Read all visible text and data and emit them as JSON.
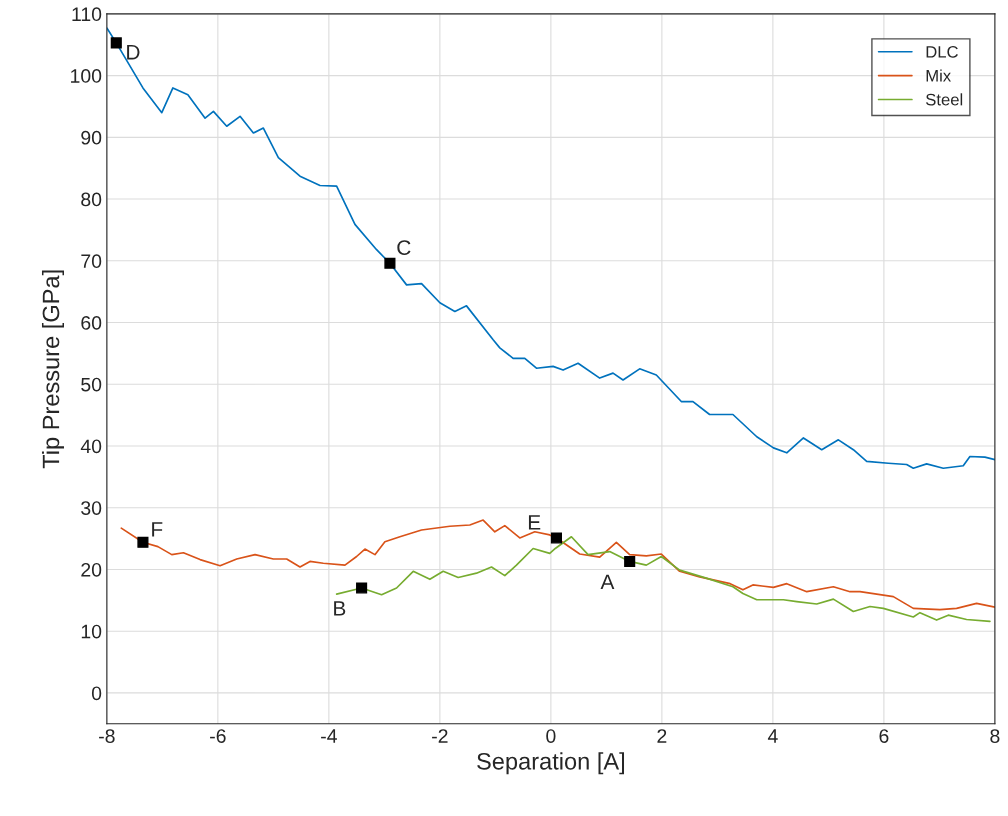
{
  "chart_data": {
    "type": "line",
    "xlabel": "Separation [A]",
    "ylabel": "Tip Pressure [GPa]",
    "xlim": [
      -8,
      8
    ],
    "ylim": [
      -5,
      110
    ],
    "xticks": [
      -8,
      -6,
      -4,
      -2,
      0,
      2,
      4,
      6,
      8
    ],
    "yticks": [
      0,
      10,
      20,
      30,
      40,
      50,
      60,
      70,
      80,
      90,
      100,
      110
    ],
    "grid": true,
    "legend": "top right",
    "line_style": "solid",
    "marker": "none",
    "series": [
      {
        "name": "DLC",
        "color": "#0072bd",
        "x": [
          -8,
          -7.83,
          -7.35,
          -7.01,
          -6.81,
          -6.54,
          -6.23,
          -6.08,
          -5.84,
          -5.6,
          -5.36,
          -5.18,
          -4.91,
          -4.52,
          -4.16,
          -3.86,
          -3.53,
          -3.14,
          -2.9,
          -2.6,
          -2.33,
          -2.0,
          -1.73,
          -1.52,
          -1.04,
          -0.92,
          -0.68,
          -0.47,
          -0.26,
          0.04,
          0.22,
          0.49,
          0.88,
          1.12,
          1.3,
          1.6,
          1.9,
          2.35,
          2.56,
          2.86,
          3.28,
          3.71,
          4.01,
          4.25,
          4.55,
          4.88,
          5.18,
          5.45,
          5.69,
          6.08,
          6.41,
          6.53,
          6.77,
          7.07,
          7.43,
          7.55,
          7.82,
          8
        ],
        "values": [
          107.7,
          105.3,
          98.0,
          94.0,
          98.0,
          96.9,
          93.1,
          94.2,
          91.8,
          93.4,
          90.7,
          91.5,
          86.7,
          83.7,
          82.2,
          82.1,
          75.9,
          71.8,
          69.6,
          66.1,
          66.3,
          63.2,
          61.8,
          62.7,
          57.2,
          55.9,
          54.2,
          54.2,
          52.6,
          52.9,
          52.3,
          53.4,
          51.0,
          51.8,
          50.7,
          52.5,
          51.5,
          47.2,
          47.2,
          45.1,
          45.1,
          41.5,
          39.7,
          38.9,
          41.3,
          39.4,
          41.0,
          39.4,
          37.5,
          37.2,
          37.0,
          36.4,
          37.1,
          36.4,
          36.8,
          38.3,
          38.2,
          37.8
        ]
      },
      {
        "name": "Mix",
        "color": "#d95319",
        "x": [
          -7.74,
          -7.35,
          -7.08,
          -6.83,
          -6.62,
          -6.32,
          -5.96,
          -5.66,
          -5.33,
          -5.0,
          -4.76,
          -4.52,
          -4.34,
          -4.1,
          -3.71,
          -3.5,
          -3.35,
          -3.17,
          -2.99,
          -2.72,
          -2.33,
          -1.82,
          -1.46,
          -1.22,
          -1.01,
          -0.83,
          -0.56,
          -0.29,
          -0.02,
          0.1,
          0.52,
          0.88,
          1.18,
          1.42,
          1.72,
          1.99,
          2.32,
          2.68,
          3.23,
          3.46,
          3.64,
          4.01,
          4.25,
          4.61,
          5.09,
          5.39,
          5.57,
          6.17,
          6.53,
          7.01,
          7.31,
          7.67,
          8
        ],
        "values": [
          26.7,
          24.4,
          23.7,
          22.4,
          22.7,
          21.6,
          20.6,
          21.7,
          22.4,
          21.7,
          21.7,
          20.4,
          21.3,
          21.0,
          20.7,
          22.1,
          23.3,
          22.4,
          24.5,
          25.3,
          26.4,
          27.0,
          27.2,
          28.0,
          26.1,
          27.1,
          25.1,
          26.1,
          25.6,
          25.1,
          22.5,
          22.0,
          24.4,
          22.4,
          22.2,
          22.5,
          19.7,
          18.8,
          17.7,
          16.7,
          17.5,
          17.1,
          17.7,
          16.4,
          17.2,
          16.4,
          16.4,
          15.6,
          13.7,
          13.5,
          13.7,
          14.5,
          13.9
        ]
      },
      {
        "name": "Steel",
        "color": "#77ac30",
        "x": [
          -3.86,
          -3.41,
          -3.05,
          -2.78,
          -2.48,
          -2.18,
          -1.94,
          -1.67,
          -1.34,
          -1.07,
          -0.83,
          -0.62,
          -0.32,
          -0.02,
          0.08,
          0.37,
          0.67,
          1.06,
          1.42,
          1.72,
          1.99,
          2.32,
          2.8,
          3.28,
          3.46,
          3.71,
          4.19,
          4.43,
          4.79,
          5.09,
          5.45,
          5.75,
          5.99,
          6.53,
          6.65,
          6.95,
          7.16,
          7.49,
          7.91
        ],
        "values": [
          16.0,
          17.0,
          15.9,
          17.0,
          19.7,
          18.4,
          19.7,
          18.7,
          19.4,
          20.4,
          19.0,
          20.7,
          23.4,
          22.6,
          23.4,
          25.3,
          22.4,
          22.9,
          21.3,
          20.7,
          22.1,
          19.9,
          18.6,
          17.2,
          16.1,
          15.1,
          15.1,
          14.8,
          14.4,
          15.2,
          13.2,
          14.0,
          13.7,
          12.3,
          13.0,
          11.8,
          12.6,
          11.9,
          11.6
        ]
      }
    ],
    "annotations": [
      {
        "text": "D",
        "x": -7.83,
        "y": 105.3
      },
      {
        "text": "C",
        "x": -2.9,
        "y": 69.6
      },
      {
        "text": "F",
        "x": -7.35,
        "y": 24.4
      },
      {
        "text": "B",
        "x": -3.41,
        "y": 17.0
      },
      {
        "text": "E",
        "x": 0.1,
        "y": 25.1
      },
      {
        "text": "A",
        "x": 1.42,
        "y": 21.3
      }
    ]
  }
}
